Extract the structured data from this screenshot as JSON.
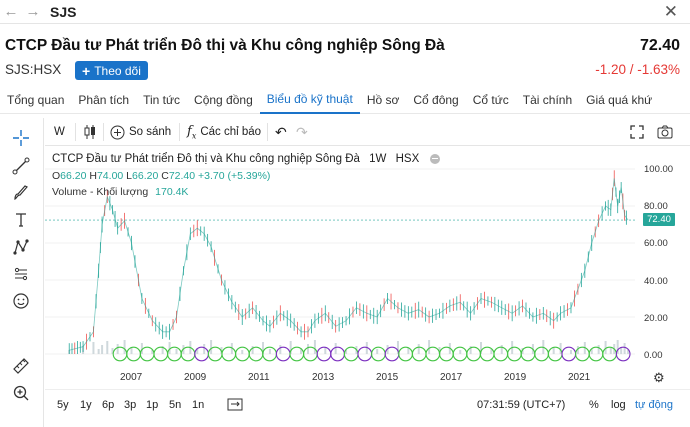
{
  "header": {
    "symbol": "SJS",
    "back_icon": "arrow-left-icon",
    "forward_icon": "arrow-right-icon",
    "close_icon": "close-icon"
  },
  "stock": {
    "company_name": "CTCP Đầu tư Phát triển Đô thị và Khu công nghiệp Sông Đà",
    "ticker": "SJS:HSX",
    "price": "72.40",
    "change": "-1.20 / -1.63%",
    "follow_label": "Theo dõi",
    "follow_icon": "plus-icon"
  },
  "tabs": [
    {
      "label": "Tổng quan"
    },
    {
      "label": "Phân tích"
    },
    {
      "label": "Tin tức"
    },
    {
      "label": "Cộng đồng"
    },
    {
      "label": "Biểu đồ kỹ thuật",
      "active": true
    },
    {
      "label": "Hồ sơ"
    },
    {
      "label": "Cổ đông"
    },
    {
      "label": "Cổ tức"
    },
    {
      "label": "Tài chính"
    },
    {
      "label": "Giá quá khứ"
    }
  ],
  "left_tools": [
    "crosshair-icon",
    "trend-line-icon",
    "brush-icon",
    "text-icon",
    "pattern-icon",
    "measure-icon",
    "emoji-icon",
    "ruler-icon",
    "zoom-in-icon"
  ],
  "toolbar": {
    "interval": "W",
    "chart_type_icon": "candlestick-icon",
    "compare_label": "So sánh",
    "compare_icon": "plus-circle-icon",
    "indicators_label": "Các chỉ báo",
    "indicators_icon": "fx-icon",
    "undo_icon": "undo-icon",
    "redo_icon": "redo-icon",
    "fullscreen_icon": "fullscreen-icon",
    "snapshot_icon": "camera-icon"
  },
  "legend": {
    "name": "CTCP Đầu tư Phát triển Đô thị và Khu công nghiệp Sông Đà",
    "interval": "1W",
    "exchange": "HSX",
    "o_label": "O",
    "o": "66.20",
    "h_label": "H",
    "h": "74.00",
    "l_label": "L",
    "l": "66.20",
    "c_label": "C",
    "c": "72.40",
    "chg": "+3.70 (+5.39%)",
    "volume_label": "Volume - Khối lượng",
    "volume": "170.4K"
  },
  "chart_data": {
    "type": "line",
    "y_ticks": [
      "100.00",
      "80.00",
      "60.00",
      "40.00",
      "20.00",
      "0.00"
    ],
    "ylim": [
      0,
      100
    ],
    "x_ticks": [
      "2007",
      "2009",
      "2011",
      "2013",
      "2015",
      "2017",
      "2019",
      "2021"
    ],
    "last_price": "72.40",
    "series": [
      {
        "x": [
          2006.2,
          2006.6,
          2006.9,
          2007.05,
          2007.15,
          2007.3,
          2007.45,
          2007.6,
          2007.8,
          2008.0,
          2008.3,
          2008.6,
          2008.9,
          2009.1,
          2009.3,
          2009.5,
          2009.7,
          2009.9,
          2010.1,
          2010.3,
          2010.6,
          2010.9,
          2011.2,
          2011.5,
          2011.8,
          2012.0,
          2012.3,
          2012.6,
          2012.9,
          2013.1,
          2013.3,
          2013.6,
          2013.9,
          2014.2,
          2014.5,
          2014.8,
          2015.1,
          2015.4,
          2015.7,
          2016.0,
          2016.3,
          2016.6,
          2016.9,
          2017.2,
          2017.5,
          2017.8,
          2018.1,
          2018.4,
          2018.7,
          2019.0,
          2019.3,
          2019.6,
          2019.9,
          2020.2,
          2020.4,
          2020.7,
          2020.9,
          2021.1,
          2021.3,
          2021.5,
          2021.7,
          2021.85,
          2021.95,
          2022.05,
          2022.15,
          2022.25,
          2022.35
        ],
        "values": [
          2,
          4,
          12,
          45,
          70,
          85,
          78,
          68,
          72,
          60,
          30,
          18,
          12,
          12,
          20,
          45,
          65,
          68,
          65,
          58,
          40,
          28,
          20,
          25,
          18,
          15,
          22,
          18,
          12,
          12,
          18,
          22,
          15,
          18,
          25,
          22,
          20,
          30,
          25,
          22,
          24,
          20,
          22,
          26,
          28,
          22,
          30,
          28,
          25,
          22,
          26,
          20,
          22,
          18,
          22,
          25,
          35,
          45,
          60,
          72,
          80,
          78,
          95,
          80,
          90,
          75,
          72.4
        ]
      }
    ]
  },
  "events_note": "dividend/event markers",
  "bottom": {
    "ranges": [
      "5y",
      "1y",
      "6p",
      "3p",
      "1p",
      "5n",
      "1n"
    ],
    "range_icon": "calendar-range-icon",
    "time": "07:31:59 (UTC+7)",
    "percent": "%",
    "log": "log",
    "auto": "tự động",
    "settings_icon": "gear-icon"
  },
  "colors": {
    "accent": "#1a73c9",
    "up": "#26a69a",
    "down": "#ef5350",
    "change": "#e53935",
    "event_ring": "#43c443",
    "event_ring2": "#7b2fbf"
  }
}
